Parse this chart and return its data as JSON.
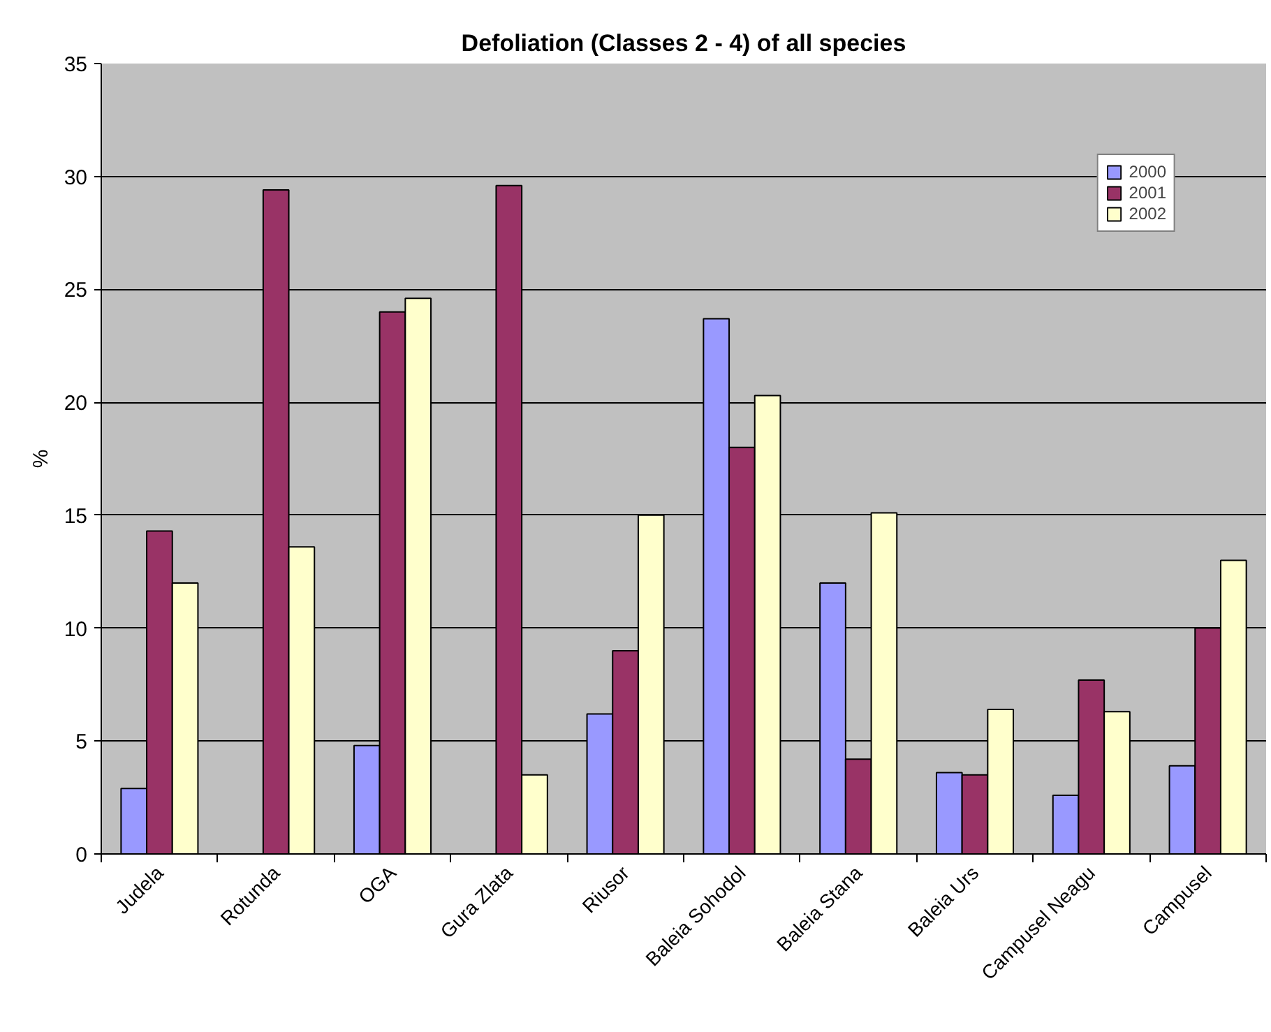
{
  "chart_data": {
    "type": "bar",
    "title": "Defoliation (Classes 2 - 4) of all species",
    "ylabel": "%",
    "categories": [
      "Judela",
      "Rotunda",
      "OGA",
      "Gura Zlata",
      "Riusor",
      "Baleia Sohodol",
      "Baleia Stana",
      "Baleia Urs",
      "Campusel Neagu",
      "Campusel"
    ],
    "series": [
      {
        "name": "2000",
        "color": "#9999ff",
        "values": [
          2.9,
          null,
          4.8,
          null,
          6.2,
          23.7,
          12.0,
          3.6,
          2.6,
          3.9
        ]
      },
      {
        "name": "2001",
        "color": "#993366",
        "values": [
          14.3,
          29.4,
          24.0,
          29.6,
          9.0,
          18.0,
          4.2,
          3.5,
          7.7,
          10.0
        ]
      },
      {
        "name": "2002",
        "color": "#ffffcc",
        "values": [
          12.0,
          13.6,
          24.6,
          3.5,
          15.0,
          20.3,
          15.1,
          6.4,
          6.3,
          13.0
        ]
      }
    ],
    "ylim": [
      0,
      35
    ],
    "yticks": [
      0,
      5,
      10,
      15,
      20,
      25,
      30,
      35
    ],
    "grid": "y",
    "legend": "top right"
  }
}
